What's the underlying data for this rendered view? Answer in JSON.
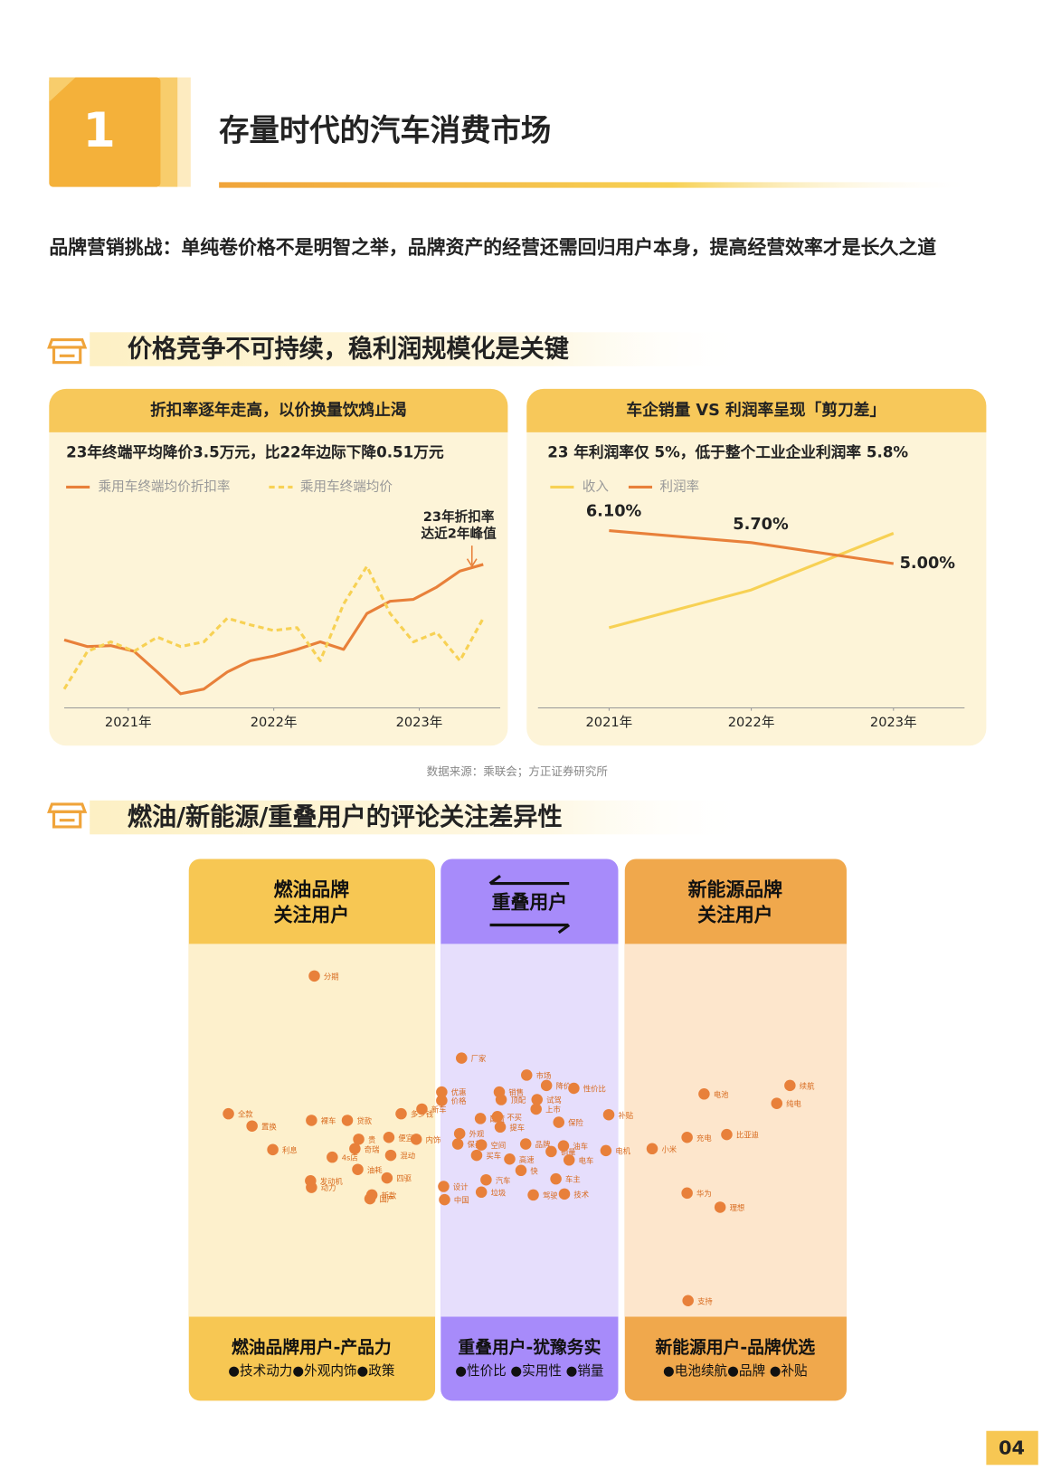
{
  "header": {
    "number": "1",
    "title": "存量时代的汽车消费市场"
  },
  "intro": "品牌营销挑战：单纯卷价格不是明智之举，品牌资产的经营还需回归用户本身，提高经营效率才是长久之道",
  "sections": [
    {
      "title": "价格竞争不可持续，稳利润规模化是关键"
    },
    {
      "title": "燃油/新能源/重叠用户的评论关注差异性"
    }
  ],
  "chart_data": [
    {
      "type": "line",
      "title": "折扣率逐年走高，以价换量饮鸩止渴",
      "subtitle": "23年终端平均降价3.5万元，比22年边际下降0.51万元",
      "x": [
        0,
        2,
        4,
        6,
        8,
        10,
        12,
        14,
        16,
        18,
        20,
        22,
        24,
        26,
        28,
        30,
        32,
        34,
        36
      ],
      "xlim": [
        0,
        36
      ],
      "xticks": [
        {
          "value": 5.5,
          "label": "2021年"
        },
        {
          "value": 18,
          "label": "2022年"
        },
        {
          "value": 30.5,
          "label": "2023年"
        }
      ],
      "ylim": [
        0,
        100
      ],
      "series": [
        {
          "name": "乘用车终端均价折扣率",
          "color": "#e8803a",
          "style": "solid",
          "values": [
            31,
            27.5,
            28,
            25,
            14,
            2.5,
            5,
            14,
            20,
            22.5,
            26,
            30,
            26,
            45,
            51.5,
            52.5,
            59,
            67.5,
            71
          ]
        },
        {
          "name": "乘用车终端均价",
          "color": "#f7d154",
          "style": "dashed",
          "values": [
            5,
            25,
            30,
            25,
            32.5,
            27.5,
            30,
            42.5,
            39,
            36,
            37.5,
            20,
            50,
            70,
            45,
            30,
            35,
            20,
            42.5
          ]
        }
      ],
      "annotation": [
        "23年折扣率",
        "达近2年峰值"
      ]
    },
    {
      "type": "line",
      "title": "车企销量 VS 利润率呈现「剪刀差」",
      "subtitle": "23 年利润率仅 5%，低于整个工业企业利润率 5.8%",
      "x": [
        2021,
        2022,
        2023
      ],
      "xlim": [
        2020.5,
        2023.5
      ],
      "xticks": [
        {
          "value": 2021,
          "label": "2021年"
        },
        {
          "value": 2022,
          "label": "2022年"
        },
        {
          "value": 2023,
          "label": "2023年"
        }
      ],
      "ylim": [
        0.5,
        6.8
      ],
      "y2lim": [
        0,
        100
      ],
      "series": [
        {
          "name": "收入",
          "color": "#f7d154",
          "style": "solid",
          "axis": "y2",
          "values": [
            37.5,
            57.5,
            87.5
          ]
        },
        {
          "name": "利润率",
          "color": "#e8803a",
          "style": "solid",
          "values": [
            6.1,
            5.7,
            5.0
          ],
          "value_labels": [
            "6.10%",
            "5.70%",
            "5.00%"
          ]
        }
      ]
    }
  ],
  "source": "数据来源：乘联会；方正证券研究所",
  "segments": [
    {
      "title_lines": [
        "燃油品牌",
        "关注用户"
      ],
      "words": [
        "分期",
        "全款",
        "置换",
        "利息",
        "裸车",
        "贷款",
        "多少钱",
        "贵",
        "便宜",
        "奇瑞",
        "4s店",
        "油耗",
        "混动",
        "发动机",
        "动力",
        "四驱",
        "新款",
        "国产",
        "内饰"
      ],
      "footer_title": "燃油品牌用户-产品力",
      "footer_items": "●技术动力●外观内饰●政策"
    },
    {
      "title_lines": [
        "重叠用户"
      ],
      "words": [
        "厂家",
        "市场",
        "降价",
        "性价比",
        "优惠",
        "价格",
        "新车",
        "销售",
        "顶配",
        "试驾",
        "上市",
        "配置",
        "不买",
        "提车",
        "保险",
        "外观",
        "保养",
        "空间",
        "买车",
        "品牌",
        "销量",
        "油车",
        "电车",
        "高速",
        "快",
        "汽车",
        "垃圾",
        "设计",
        "中国",
        "驾驶",
        "车主",
        "技术",
        "补贴",
        "电机"
      ],
      "footer_title": "重叠用户-犹豫务实",
      "footer_items": "●性价比 ●实用性 ●销量"
    },
    {
      "title_lines": [
        "新能源品牌",
        "关注用户"
      ],
      "words": [
        "电池",
        "续航",
        "纯电",
        "充电",
        "比亚迪",
        "小米",
        "华为",
        "理想",
        "支持"
      ],
      "footer_title": "新能源用户-品牌优选",
      "footer_items": "●电池续航●品牌 ●补贴"
    }
  ],
  "page_number": "04"
}
